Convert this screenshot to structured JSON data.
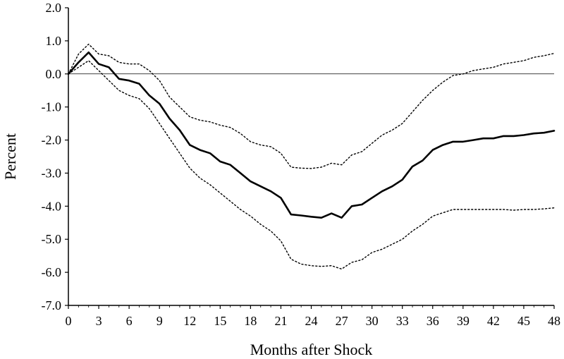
{
  "chart_data": {
    "type": "line",
    "xlabel": "Months after Shock",
    "ylabel": "Percent",
    "xlim": [
      0,
      48
    ],
    "ylim": [
      -7.0,
      2.0
    ],
    "xticks": [
      0,
      3,
      6,
      9,
      12,
      15,
      18,
      21,
      24,
      27,
      30,
      33,
      36,
      39,
      42,
      45,
      48
    ],
    "xtick_labels": [
      "0",
      "3",
      "6",
      "9",
      "12",
      "15",
      "18",
      "21",
      "24",
      "27",
      "30",
      "33",
      "36",
      "39",
      "42",
      "45",
      "48"
    ],
    "yticks": [
      2.0,
      1.0,
      0.0,
      -1.0,
      -2.0,
      -3.0,
      -4.0,
      -5.0,
      -6.0,
      -7.0
    ],
    "ytick_labels": [
      "2.0",
      "1.0",
      "0.0",
      "-1.0",
      "-2.0",
      "-3.0",
      "-4.0",
      "-5.0",
      "-6.0",
      "-7.0"
    ],
    "zero_line": 0.0,
    "grid": false,
    "legend": false,
    "x": [
      0,
      1,
      2,
      3,
      4,
      5,
      6,
      7,
      8,
      9,
      10,
      11,
      12,
      13,
      14,
      15,
      16,
      17,
      18,
      19,
      20,
      21,
      22,
      23,
      24,
      25,
      26,
      27,
      28,
      29,
      30,
      31,
      32,
      33,
      34,
      35,
      36,
      37,
      38,
      39,
      40,
      41,
      42,
      43,
      44,
      45,
      46,
      47,
      48
    ],
    "series": [
      {
        "style": "solid",
        "color": "#000000",
        "values": [
          0.0,
          0.35,
          0.65,
          0.3,
          0.2,
          -0.15,
          -0.2,
          -0.3,
          -0.65,
          -0.9,
          -1.35,
          -1.7,
          -2.15,
          -2.3,
          -2.4,
          -2.65,
          -2.75,
          -3.0,
          -3.25,
          -3.4,
          -3.55,
          -3.75,
          -4.25,
          -4.28,
          -4.32,
          -4.35,
          -4.22,
          -4.35,
          -4.0,
          -3.95,
          -3.75,
          -3.55,
          -3.4,
          -3.2,
          -2.8,
          -2.62,
          -2.3,
          -2.15,
          -2.05,
          -2.05,
          -2.0,
          -1.95,
          -1.95,
          -1.88,
          -1.88,
          -1.85,
          -1.8,
          -1.78,
          -1.72
        ]
      },
      {
        "style": "dotted",
        "color": "#000000",
        "values": [
          0.0,
          0.6,
          0.9,
          0.6,
          0.55,
          0.35,
          0.3,
          0.3,
          0.1,
          -0.2,
          -0.7,
          -1.0,
          -1.3,
          -1.4,
          -1.45,
          -1.55,
          -1.62,
          -1.8,
          -2.05,
          -2.15,
          -2.2,
          -2.4,
          -2.82,
          -2.85,
          -2.86,
          -2.82,
          -2.7,
          -2.75,
          -2.45,
          -2.35,
          -2.1,
          -1.85,
          -1.7,
          -1.5,
          -1.15,
          -0.8,
          -0.5,
          -0.25,
          -0.05,
          0.0,
          0.1,
          0.15,
          0.2,
          0.3,
          0.35,
          0.4,
          0.5,
          0.55,
          0.62
        ]
      },
      {
        "style": "dotted",
        "color": "#000000",
        "values": [
          0.0,
          0.2,
          0.4,
          0.1,
          -0.2,
          -0.5,
          -0.65,
          -0.75,
          -1.05,
          -1.5,
          -1.95,
          -2.4,
          -2.85,
          -3.15,
          -3.35,
          -3.6,
          -3.85,
          -4.1,
          -4.3,
          -4.55,
          -4.75,
          -5.05,
          -5.6,
          -5.75,
          -5.8,
          -5.82,
          -5.8,
          -5.9,
          -5.7,
          -5.62,
          -5.4,
          -5.3,
          -5.15,
          -5.0,
          -4.75,
          -4.55,
          -4.3,
          -4.2,
          -4.1,
          -4.1,
          -4.1,
          -4.1,
          -4.1,
          -4.1,
          -4.12,
          -4.1,
          -4.1,
          -4.08,
          -4.05
        ]
      }
    ]
  }
}
